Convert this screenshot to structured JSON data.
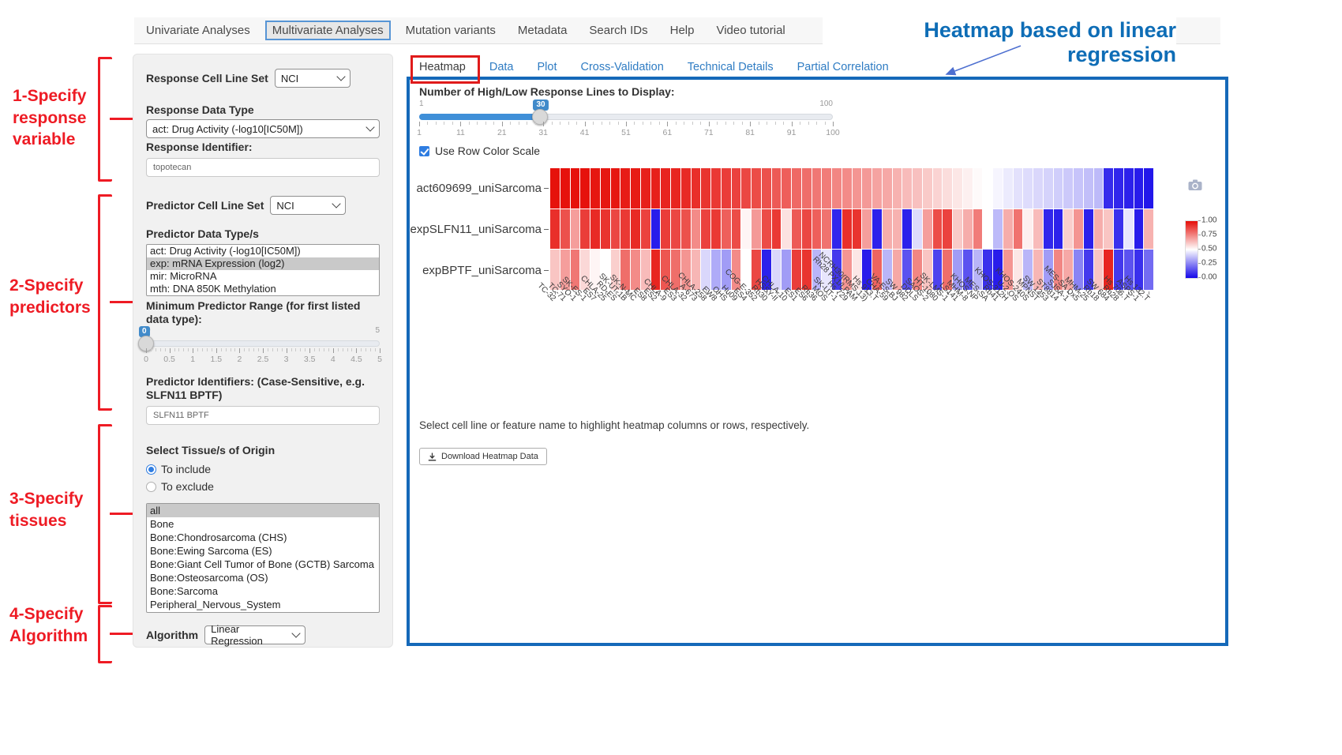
{
  "nav": {
    "items": [
      {
        "label": "Univariate Analyses",
        "active": false
      },
      {
        "label": "Multivariate Analyses",
        "active": true
      },
      {
        "label": "Mutation variants",
        "active": false
      },
      {
        "label": "Metadata",
        "active": false
      },
      {
        "label": "Search IDs",
        "active": false
      },
      {
        "label": "Help",
        "active": false
      },
      {
        "label": "Video tutorial",
        "active": false
      }
    ]
  },
  "annotations": {
    "heading": "Heatmap based on linear regression",
    "heading_color": "#0e6db6",
    "step_color": "#ee1b24",
    "steps": [
      {
        "lines": [
          "1-Specify",
          "response",
          "variable"
        ]
      },
      {
        "lines": [
          "2-Specify",
          "predictors"
        ]
      },
      {
        "lines": [
          "3-Specify",
          "tissues"
        ]
      },
      {
        "lines": [
          "4-Specify",
          "Algorithm"
        ]
      }
    ]
  },
  "sidebar": {
    "response_cell_line_set": {
      "label": "Response Cell Line Set",
      "value": "NCI"
    },
    "response_data_type": {
      "label": "Response Data Type",
      "value": "act: Drug Activity (-log10[IC50M])"
    },
    "response_identifier": {
      "label": "Response Identifier:",
      "value": "topotecan"
    },
    "predictor_cell_line_set": {
      "label": "Predictor Cell Line Set",
      "value": "NCI"
    },
    "predictor_data_types": {
      "label": "Predictor Data Type/s",
      "options": [
        "act: Drug Activity (-log10[IC50M])",
        "exp: mRNA Expression (log2)",
        "mir: MicroRNA",
        "mth: DNA 850K Methylation"
      ],
      "selected": "exp: mRNA Expression (log2)"
    },
    "min_predictor_range": {
      "label": "Minimum Predictor Range (for first listed data type):",
      "value": "0",
      "min": "0",
      "max": "5",
      "tick_labels": [
        "0",
        "0.5",
        "1",
        "1.5",
        "2",
        "2.5",
        "3",
        "3.5",
        "4",
        "4.5",
        "5"
      ]
    },
    "predictor_identifiers": {
      "label": "Predictor Identifiers: (Case-Sensitive, e.g. SLFN11 BPTF)",
      "value": "SLFN11 BPTF"
    },
    "tissues": {
      "label": "Select Tissue/s of Origin",
      "radios": [
        {
          "label": "To include",
          "selected": true
        },
        {
          "label": "To exclude",
          "selected": false
        }
      ],
      "options": [
        "all",
        "Bone",
        "Bone:Chondrosarcoma (CHS)",
        "Bone:Ewing Sarcoma (ES)",
        "Bone:Giant Cell Tumor of Bone (GCTB) Sarcoma",
        "Bone:Osteosarcoma (OS)",
        "Bone:Sarcoma",
        "Peripheral_Nervous_System"
      ],
      "selected": "all"
    },
    "algorithm": {
      "label": "Algorithm",
      "value": "Linear Regression"
    }
  },
  "main": {
    "tabs": [
      {
        "label": "Heatmap",
        "active": true
      },
      {
        "label": "Data",
        "active": false
      },
      {
        "label": "Plot",
        "active": false
      },
      {
        "label": "Cross-Validation",
        "active": false
      },
      {
        "label": "Technical Details",
        "active": false
      },
      {
        "label": "Partial Correlation",
        "active": false
      }
    ],
    "lines_slider": {
      "label": "Number of High/Low Response Lines to Display:",
      "min": "1",
      "max": "100",
      "value": "30",
      "tick_labels": [
        "1",
        "11",
        "21",
        "31",
        "41",
        "51",
        "61",
        "71",
        "81",
        "91",
        "100"
      ]
    },
    "row_color_scale": {
      "label": "Use Row Color Scale",
      "checked": true
    },
    "hint": "Select cell line or feature name to highlight heatmap columns or rows, respectively.",
    "download_button": "Download Heatmap Data"
  },
  "icons": {
    "camera-icon": "svg-camera",
    "download-icon": "svg-download-arrow",
    "chevron-down-icon": "css-chevron",
    "checkmark-icon": "css-check"
  },
  "chart_data": {
    "type": "heatmap",
    "rows": [
      "act609699_uniSarcoma",
      "expSLFN11_uniSarcoma",
      "expBPTF_uniSarcoma"
    ],
    "columns": [
      "TC-32",
      "TC-71",
      "SYO-1",
      "SK-ES-1",
      "ES7",
      "CHLA-25",
      "RD-ES",
      "SK-UT-1B",
      "SK-N-MC",
      "ES8",
      "ES2",
      "CHLA-9",
      "ES3",
      "CHLA-32",
      "A-673",
      "CHLA-258",
      "EW8",
      "OHS",
      "Hu09",
      "ES4",
      "COG-E-352",
      "Rh30",
      "HSSY-II",
      "CHLA-10",
      "ES1",
      "ES6",
      "Rh36",
      "MOS",
      "SK-UT-1",
      "Hs 729",
      "Rh28 PX1/LPAM",
      "NCRH30(RMS 13)",
      "Hs 913.T",
      "CHA-59",
      "VA-ES-BJ",
      "SW 982",
      "DDLS",
      "SAOS-2",
      "HT-1080",
      "SK-LMS-1",
      "LS141",
      "MHM-8",
      "KHOS NP",
      "MES-SA",
      "Rh41",
      "KHOS-312H",
      "U-2 OS",
      "KHOS-240S",
      "MPNST",
      "SW 1353",
      "ST8814",
      "SJSA-1",
      "MES-SA Dx5",
      "MHM-25",
      "Rh18",
      "SW 684",
      "Rh28",
      "Hs 706.T",
      "ASPS-1",
      "Hs 132.T"
    ],
    "series": [
      {
        "name": "act609699_uniSarcoma",
        "values": [
          0.99,
          0.99,
          0.99,
          0.99,
          0.98,
          0.98,
          0.98,
          0.97,
          0.97,
          0.96,
          0.96,
          0.95,
          0.95,
          0.94,
          0.93,
          0.92,
          0.91,
          0.9,
          0.89,
          0.88,
          0.87,
          0.86,
          0.84,
          0.83,
          0.81,
          0.8,
          0.78,
          0.77,
          0.75,
          0.74,
          0.72,
          0.71,
          0.69,
          0.68,
          0.66,
          0.64,
          0.63,
          0.61,
          0.59,
          0.57,
          0.55,
          0.53,
          0.51,
          0.5,
          0.48,
          0.46,
          0.44,
          0.43,
          0.42,
          0.41,
          0.4,
          0.39,
          0.38,
          0.37,
          0.36,
          0.07,
          0.06,
          0.05,
          0.04,
          0.03
        ]
      },
      {
        "name": "expSLFN11_uniSarcoma",
        "values": [
          0.93,
          0.86,
          0.7,
          0.9,
          0.94,
          0.92,
          0.88,
          0.91,
          0.94,
          0.89,
          0.04,
          0.9,
          0.88,
          0.86,
          0.74,
          0.89,
          0.91,
          0.83,
          0.87,
          0.52,
          0.71,
          0.87,
          0.91,
          0.56,
          0.84,
          0.88,
          0.83,
          0.79,
          0.06,
          0.93,
          0.92,
          0.7,
          0.05,
          0.67,
          0.66,
          0.05,
          0.43,
          0.7,
          0.87,
          0.89,
          0.61,
          0.67,
          0.77,
          0.5,
          0.36,
          0.67,
          0.79,
          0.53,
          0.64,
          0.06,
          0.05,
          0.6,
          0.72,
          0.05,
          0.67,
          0.62,
          0.08,
          0.45,
          0.04,
          0.66
        ]
      },
      {
        "name": "expBPTF_uniSarcoma",
        "values": [
          0.62,
          0.7,
          0.78,
          0.58,
          0.52,
          0.5,
          0.6,
          0.8,
          0.74,
          0.64,
          0.95,
          0.85,
          0.8,
          0.72,
          0.65,
          0.42,
          0.33,
          0.3,
          0.74,
          0.5,
          0.88,
          0.05,
          0.42,
          0.3,
          0.9,
          0.92,
          0.35,
          0.45,
          0.1,
          0.72,
          0.55,
          0.04,
          0.82,
          0.35,
          0.68,
          0.15,
          0.75,
          0.62,
          0.12,
          0.8,
          0.3,
          0.15,
          0.35,
          0.08,
          0.04,
          0.72,
          0.55,
          0.35,
          0.65,
          0.3,
          0.75,
          0.68,
          0.25,
          0.1,
          0.62,
          0.95,
          0.1,
          0.15,
          0.08,
          0.2
        ]
      }
    ],
    "value_range": [
      0,
      1
    ],
    "colorbar_ticks": [
      "1.00",
      "0.75",
      "0.50",
      "0.25",
      "0.00"
    ],
    "high_color": "#e50d07",
    "mid_color": "#ffffff",
    "low_color": "#1508e9",
    "legend_position": "right",
    "x_tick_rotation": 45
  }
}
